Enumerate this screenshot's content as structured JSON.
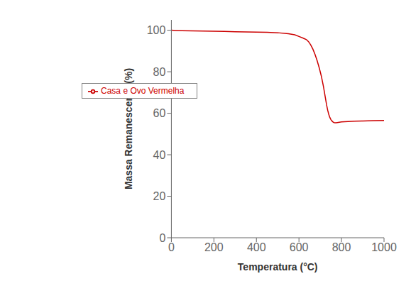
{
  "chart_data": {
    "type": "line",
    "xlabel": "Temperatura (°C)",
    "ylabel": "Massa Remanescente (%)",
    "x": [
      0,
      20,
      50,
      100,
      150,
      200,
      250,
      300,
      350,
      400,
      450,
      500,
      550,
      580,
      600,
      620,
      635,
      645,
      655,
      665,
      675,
      685,
      695,
      705,
      715,
      720,
      725,
      730,
      735,
      740,
      745,
      750,
      755,
      760,
      765,
      770,
      775,
      780,
      800,
      830,
      860,
      900,
      950,
      1000
    ],
    "series": [
      {
        "name": "Casa e Ovo Vermelha",
        "color": "#cc0000",
        "values": [
          100.0,
          99.9,
          99.8,
          99.7,
          99.6,
          99.5,
          99.4,
          99.3,
          99.2,
          99.1,
          99.0,
          98.8,
          98.3,
          97.8,
          97.0,
          96.2,
          95.5,
          94.5,
          93.0,
          91.0,
          88.5,
          85.5,
          82.0,
          78.0,
          73.0,
          70.0,
          67.0,
          64.0,
          61.5,
          59.5,
          58.0,
          57.0,
          56.3,
          55.8,
          55.5,
          55.4,
          55.4,
          55.5,
          55.8,
          56.0,
          56.2,
          56.3,
          56.4,
          56.5
        ]
      }
    ],
    "xlim": [
      0,
      1000
    ],
    "ylim": [
      0,
      105
    ],
    "xticks": [
      0,
      200,
      400,
      600,
      800,
      1000
    ],
    "yticks": [
      0,
      20,
      40,
      60,
      80,
      100
    ],
    "grid": false,
    "legend": "upper left"
  }
}
